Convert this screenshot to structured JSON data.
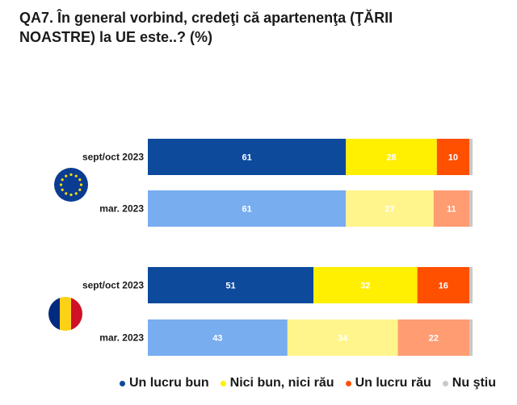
{
  "title": "QA7. În general vorbind, credeţi că apartenenţa (ŢĂRII NOASTRE) la UE este..? (%)",
  "chart_data": {
    "type": "bar",
    "orientation": "horizontal",
    "stacked": true,
    "xlim": [
      0,
      100
    ],
    "groups": [
      {
        "name": "UE",
        "emblem": "eu-flag-icon"
      },
      {
        "name": "România",
        "emblem": "romania-flag-icon"
      }
    ],
    "rows": [
      {
        "group": 0,
        "label": "sept/oct 2023",
        "values": [
          61,
          28,
          10,
          1
        ],
        "labels": [
          "61",
          "28",
          "10",
          ""
        ]
      },
      {
        "group": 0,
        "label": "mar. 2023",
        "values": [
          61,
          27,
          11,
          1
        ],
        "labels": [
          "61",
          "27",
          "11",
          ""
        ]
      },
      {
        "group": 1,
        "label": "sept/oct 2023",
        "values": [
          51,
          32,
          16,
          1
        ],
        "labels": [
          "51",
          "32",
          "16",
          ""
        ]
      },
      {
        "group": 1,
        "label": "mar. 2023",
        "values": [
          43,
          34,
          22,
          1
        ],
        "labels": [
          "43",
          "34",
          "22",
          ""
        ]
      }
    ],
    "series": [
      {
        "name": "Un lucru bun",
        "color_current": "#0d4a9c",
        "color_previous": "#78adf0",
        "label_current": "#ffffff",
        "label_previous": "#ffffff"
      },
      {
        "name": "Nici bun, nici rău",
        "color_current": "#ffef00",
        "color_previous": "#fff58c",
        "label_current": "#ffffff",
        "label_previous": "#ffffff"
      },
      {
        "name": "Un lucru rău",
        "color_current": "#ff5000",
        "color_previous": "#ff9c72",
        "label_current": "#ffffff",
        "label_previous": "#ffffff"
      },
      {
        "name": "Nu ştiu",
        "color_current": "#c9c9c9",
        "color_previous": "#c9c9c9",
        "label_current": "#ffffff",
        "label_previous": "#ffffff"
      }
    ],
    "legend": {
      "position": "bottom",
      "items": [
        "Un lucru bun",
        "Nici bun, nici rău",
        "Un lucru rău",
        "Nu ştiu"
      ],
      "colors": [
        "#0d4a9c",
        "#ffef00",
        "#ff5000",
        "#c9c9c9"
      ]
    }
  }
}
